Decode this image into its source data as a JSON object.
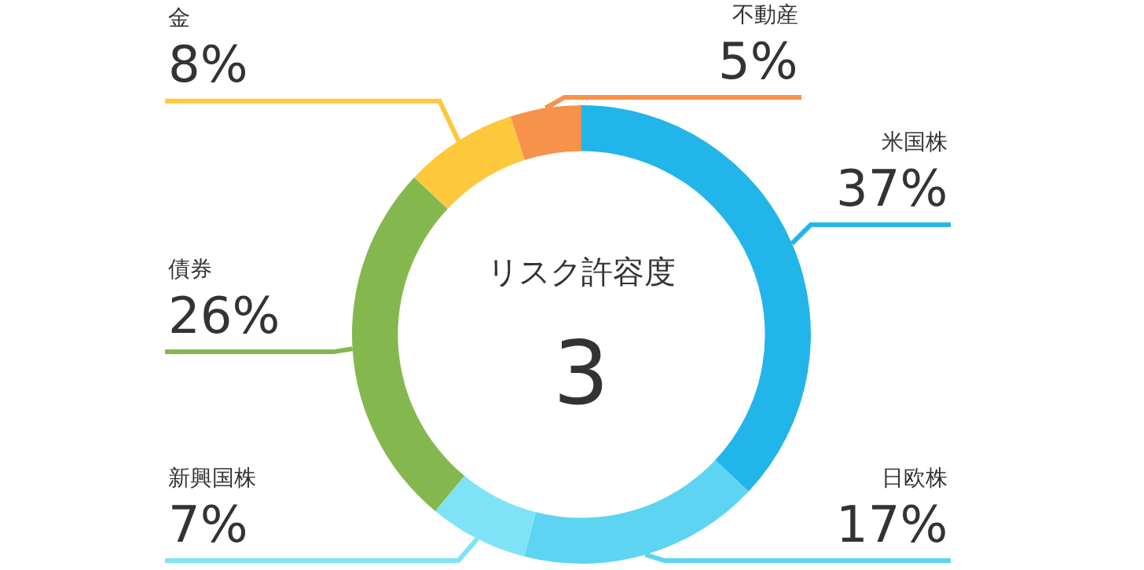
{
  "chart_data": {
    "type": "donut",
    "categories": [
      "米国株",
      "日欧株",
      "新興国株",
      "債券",
      "金",
      "不動産"
    ],
    "values": [
      37,
      17,
      7,
      26,
      8,
      5
    ],
    "value_labels": [
      "37%",
      "17%",
      "7%",
      "26%",
      "8%",
      "5%"
    ],
    "colors": [
      "#22b5ea",
      "#5dd5f2",
      "#7fe3f7",
      "#84b84f",
      "#fdc83c",
      "#f7924a"
    ],
    "annotations": [
      "リスク許容度",
      "3"
    ],
    "legend": false
  }
}
